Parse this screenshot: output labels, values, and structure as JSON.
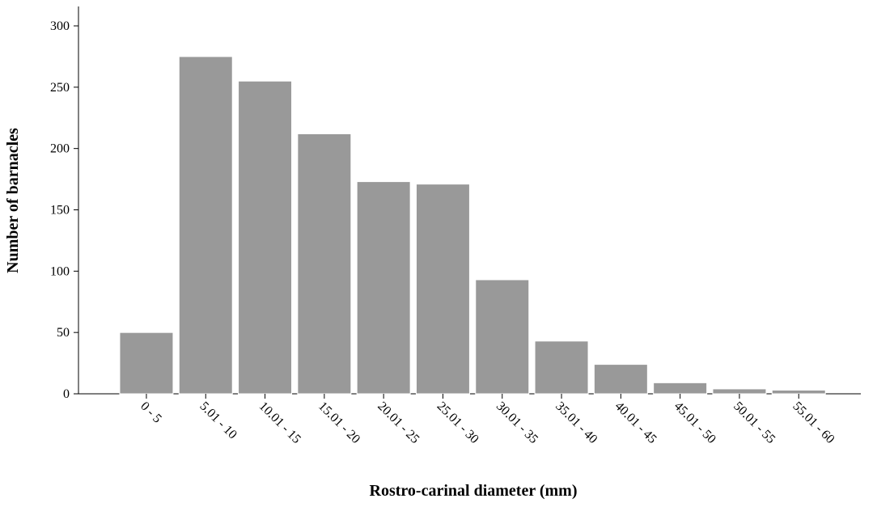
{
  "chart_data": {
    "type": "bar",
    "x_label": "Rostro-carinal diameter (mm)",
    "y_label": "Number of barnacles",
    "categories": [
      "0 - 5",
      "5.01 - 10",
      "10.01 - 15",
      "15.01 - 20",
      "20.01 - 25",
      "25.01 - 30",
      "30.01 - 35",
      "35.01 - 40",
      "40.01 - 45",
      "45.01 - 50",
      "50.01 - 55",
      "55.01 - 60"
    ],
    "values": [
      50,
      275,
      255,
      212,
      173,
      171,
      93,
      43,
      24,
      9,
      4,
      3
    ],
    "color": "#999999",
    "ylim": [
      0,
      300
    ],
    "yticks": [
      0,
      50,
      100,
      150,
      200,
      250,
      300
    ],
    "grid": false
  }
}
